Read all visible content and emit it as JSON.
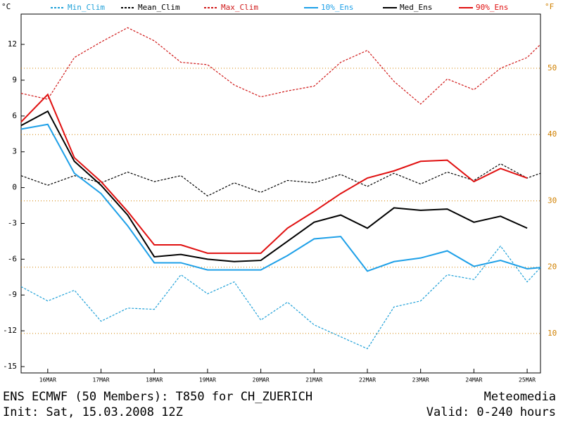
{
  "chart_data": {
    "type": "line",
    "title": "ENS ECMWF (50 Members): T850 for CH_ZUERICH",
    "subtitle": "Init: Sat, 15.03.2008 12Z",
    "source": "Meteomedia",
    "valid": "Valid: 0-240 hours",
    "y_label": "°C",
    "y2_label": "°F",
    "x": [
      0,
      12,
      24,
      36,
      48,
      60,
      72,
      84,
      96,
      108,
      120,
      132,
      144,
      156,
      168,
      180,
      192,
      204,
      216,
      228,
      234
    ],
    "xlim": [
      0,
      234
    ],
    "xticks": [
      {
        "value": 12,
        "label": "16MAR"
      },
      {
        "value": 36,
        "label": "17MAR"
      },
      {
        "value": 60,
        "label": "18MAR"
      },
      {
        "value": 84,
        "label": "19MAR"
      },
      {
        "value": 108,
        "label": "20MAR"
      },
      {
        "value": 132,
        "label": "21MAR"
      },
      {
        "value": 156,
        "label": "22MAR"
      },
      {
        "value": 180,
        "label": "23MAR"
      },
      {
        "value": 204,
        "label": "24MAR"
      },
      {
        "value": 228,
        "label": "25MAR"
      }
    ],
    "ylim": [
      -15.53,
      14.54
    ],
    "yticks": [
      -15,
      -12,
      -9,
      -6,
      -3,
      0,
      3,
      6,
      9,
      12
    ],
    "y2lim": [
      4.05,
      58.17
    ],
    "y2ticks": [
      10,
      20,
      30,
      40,
      50
    ],
    "y2_color": "#d08000",
    "grid": true,
    "series": [
      {
        "name": "Min_Clim",
        "color": "#1ea0d8",
        "dash": true,
        "values": [
          -8.3,
          -9.5,
          -8.6,
          -11.2,
          -10.1,
          -10.2,
          -7.3,
          -8.9,
          -7.9,
          -11.1,
          -9.6,
          -11.5,
          -12.5,
          -13.5,
          -10.0,
          -9.5,
          -7.3,
          -7.7,
          -4.9,
          -7.9,
          -6.7
        ]
      },
      {
        "name": "Mean_Clim",
        "color": "#000000",
        "dash": true,
        "values": [
          1.0,
          0.2,
          1.0,
          0.4,
          1.3,
          0.5,
          1.0,
          -0.7,
          0.4,
          -0.4,
          0.6,
          0.4,
          1.1,
          0.1,
          1.2,
          0.3,
          1.3,
          0.6,
          2.0,
          0.8,
          1.2
        ]
      },
      {
        "name": "Max_Clim",
        "color": "#d01818",
        "dash": true,
        "values": [
          7.9,
          7.4,
          10.9,
          12.2,
          13.4,
          12.3,
          10.5,
          10.3,
          8.6,
          7.6,
          8.1,
          8.5,
          10.5,
          11.5,
          8.9,
          7.0,
          9.1,
          8.2,
          10.0,
          10.9,
          12.0
        ]
      },
      {
        "name": "10%_Ens",
        "color": "#1ea0e8",
        "dash": false,
        "values": [
          4.9,
          5.3,
          1.2,
          -0.5,
          -3.2,
          -6.3,
          -6.3,
          -6.9,
          -6.9,
          -6.9,
          -5.7,
          -4.3,
          -4.1,
          -7.0,
          -6.2,
          -5.9,
          -5.3,
          -6.6,
          -6.1,
          -6.8,
          -6.7
        ]
      },
      {
        "name": "Med_Ens",
        "color": "#000000",
        "dash": false,
        "values": [
          5.2,
          6.4,
          2.2,
          0.2,
          -2.3,
          -5.8,
          -5.6,
          -6.0,
          -6.2,
          -6.1,
          -4.5,
          -2.9,
          -2.3,
          -3.4,
          -1.7,
          -1.9,
          -1.8,
          -2.9,
          -2.4,
          -3.4,
          null
        ]
      },
      {
        "name": "90%_Ens",
        "color": "#e01010",
        "dash": false,
        "values": [
          5.5,
          7.8,
          2.5,
          0.5,
          -2.0,
          -4.8,
          -4.8,
          -5.5,
          -5.5,
          -5.5,
          -3.4,
          -2.0,
          -0.5,
          0.8,
          1.4,
          2.2,
          2.3,
          0.5,
          1.6,
          0.8,
          null
        ]
      }
    ]
  }
}
